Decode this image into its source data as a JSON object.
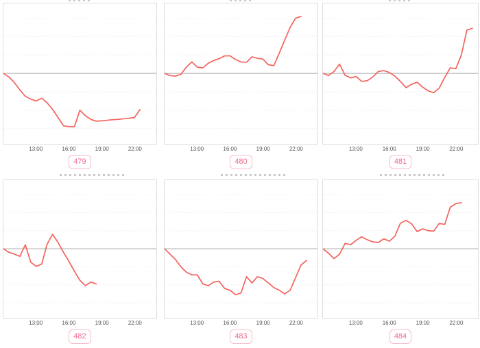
{
  "style": {
    "line_color": "#f4635d",
    "zero_line_color": "#a8a8a8",
    "grid_color": "#ebebeb",
    "plot_border_color": "#dddddd",
    "tick_text_color": "#555555",
    "badge_text_color": "#ee6b8a",
    "badge_border_color": "#f7bccb",
    "background": "#ffffff"
  },
  "axis": {
    "tick_labels": [
      "13:00",
      "16:00",
      "19:00",
      "22:00"
    ],
    "tick_hours": [
      13,
      16,
      19,
      22
    ],
    "x_range_hours": [
      10,
      24
    ],
    "y_tick_labels": [],
    "grid": "horizontal-only",
    "baseline_note": "dark solid horizontal line marks value 0 near mid-height of each plot"
  },
  "chart_data": [
    {
      "type": "line",
      "badge": "479",
      "title": "",
      "xlabel": "",
      "ylabel": "",
      "y_unit": "relative units (1 unit = one horizontal gridline gap, baseline = 0)",
      "x_hours": [
        10.0,
        10.5,
        11.0,
        11.5,
        12.0,
        12.5,
        13.0,
        13.5,
        14.0,
        14.5,
        15.0,
        15.5,
        16.0,
        16.5,
        17.0,
        17.5,
        18.0,
        18.5,
        19.0,
        19.5,
        20.0,
        20.5,
        21.0,
        21.5,
        22.0,
        22.5
      ],
      "values": [
        0,
        -0.2,
        -0.5,
        -0.9,
        -1.25,
        -1.4,
        -1.5,
        -1.35,
        -1.6,
        -1.95,
        -2.4,
        -2.85,
        -2.9,
        -2.9,
        -2.0,
        -2.3,
        -2.5,
        -2.6,
        -2.58,
        -2.55,
        -2.52,
        -2.5,
        -2.47,
        -2.44,
        -2.4,
        -1.97
      ]
    },
    {
      "type": "line",
      "badge": "480",
      "title": "",
      "xlabel": "",
      "ylabel": "",
      "y_unit": "relative units (1 unit = one horizontal gridline gap, baseline = 0)",
      "x_hours": [
        10.0,
        10.5,
        11.0,
        11.5,
        12.0,
        12.5,
        13.0,
        13.5,
        14.0,
        14.5,
        15.0,
        15.5,
        16.0,
        16.5,
        17.0,
        17.5,
        18.0,
        18.5,
        19.0,
        19.5,
        20.0,
        20.5,
        21.0,
        21.5,
        22.0,
        22.5
      ],
      "values": [
        0,
        -0.12,
        -0.15,
        -0.05,
        0.35,
        0.62,
        0.33,
        0.3,
        0.55,
        0.7,
        0.8,
        0.95,
        0.95,
        0.75,
        0.62,
        0.6,
        0.9,
        0.82,
        0.78,
        0.47,
        0.42,
        1.1,
        1.8,
        2.5,
        3.0,
        3.1
      ]
    },
    {
      "type": "line",
      "badge": "481",
      "title": "",
      "xlabel": "",
      "ylabel": "",
      "y_unit": "relative units (1 unit = one horizontal gridline gap, baseline = 0)",
      "x_hours": [
        10.0,
        10.5,
        11.0,
        11.5,
        12.0,
        12.5,
        13.0,
        13.5,
        14.0,
        14.5,
        15.0,
        15.5,
        16.0,
        16.5,
        17.0,
        17.5,
        18.0,
        18.5,
        19.0,
        19.5,
        20.0,
        20.5,
        21.0,
        21.5,
        22.0,
        22.5,
        23.0,
        23.5
      ],
      "values": [
        0,
        -0.12,
        0.1,
        0.5,
        -0.1,
        -0.25,
        -0.17,
        -0.44,
        -0.4,
        -0.2,
        0.1,
        0.15,
        0.05,
        -0.15,
        -0.44,
        -0.78,
        -0.6,
        -0.48,
        -0.75,
        -0.95,
        -1.05,
        -0.8,
        -0.22,
        0.3,
        0.25,
        1.0,
        2.35,
        2.45
      ]
    },
    {
      "type": "line",
      "badge": "482",
      "title": "",
      "xlabel": "",
      "ylabel": "",
      "y_unit": "relative units (1 unit = one horizontal gridline gap, baseline = 0)",
      "x_hours": [
        10.0,
        10.5,
        11.0,
        11.5,
        12.0,
        12.5,
        13.0,
        13.5,
        14.0,
        14.5,
        15.0,
        15.5,
        16.0,
        16.5,
        17.0,
        17.5,
        18.0,
        18.5
      ],
      "values": [
        0,
        -0.2,
        -0.3,
        -0.42,
        0.22,
        -0.75,
        -0.98,
        -0.85,
        0.25,
        0.8,
        0.35,
        -0.2,
        -0.7,
        -1.25,
        -1.75,
        -2.05,
        -1.85,
        -1.95
      ]
    },
    {
      "type": "line",
      "badge": "483",
      "title": "",
      "xlabel": "",
      "ylabel": "",
      "y_unit": "relative units (1 unit = one horizontal gridline gap, baseline = 0)",
      "x_hours": [
        10.0,
        10.5,
        11.0,
        11.5,
        12.0,
        12.5,
        13.0,
        13.5,
        14.0,
        14.5,
        15.0,
        15.5,
        16.0,
        16.5,
        17.0,
        17.5,
        18.0,
        18.5,
        19.0,
        19.5,
        20.0,
        20.5,
        21.0,
        21.5,
        22.0,
        22.5,
        23.0
      ],
      "values": [
        0,
        -0.3,
        -0.6,
        -1.0,
        -1.3,
        -1.45,
        -1.45,
        -1.95,
        -2.05,
        -1.85,
        -1.8,
        -2.2,
        -2.3,
        -2.55,
        -2.45,
        -1.55,
        -1.9,
        -1.55,
        -1.65,
        -1.9,
        -2.15,
        -2.3,
        -2.5,
        -2.3,
        -1.6,
        -0.9,
        -0.65
      ]
    },
    {
      "type": "line",
      "badge": "484",
      "title": "",
      "xlabel": "",
      "ylabel": "",
      "y_unit": "relative units (1 unit = one horizontal gridline gap, baseline = 0)",
      "x_hours": [
        10.0,
        10.5,
        11.0,
        11.5,
        12.0,
        12.5,
        13.0,
        13.5,
        14.0,
        14.5,
        15.0,
        15.5,
        16.0,
        16.5,
        17.0,
        17.5,
        18.0,
        18.5,
        19.0,
        19.5,
        20.0,
        20.5,
        21.0,
        21.5,
        22.0,
        22.5
      ],
      "values": [
        0,
        -0.25,
        -0.55,
        -0.3,
        0.3,
        0.22,
        0.47,
        0.66,
        0.5,
        0.38,
        0.35,
        0.55,
        0.42,
        0.7,
        1.42,
        1.57,
        1.39,
        0.95,
        1.1,
        1.0,
        0.98,
        1.4,
        1.35,
        2.3,
        2.5,
        2.55
      ]
    }
  ]
}
